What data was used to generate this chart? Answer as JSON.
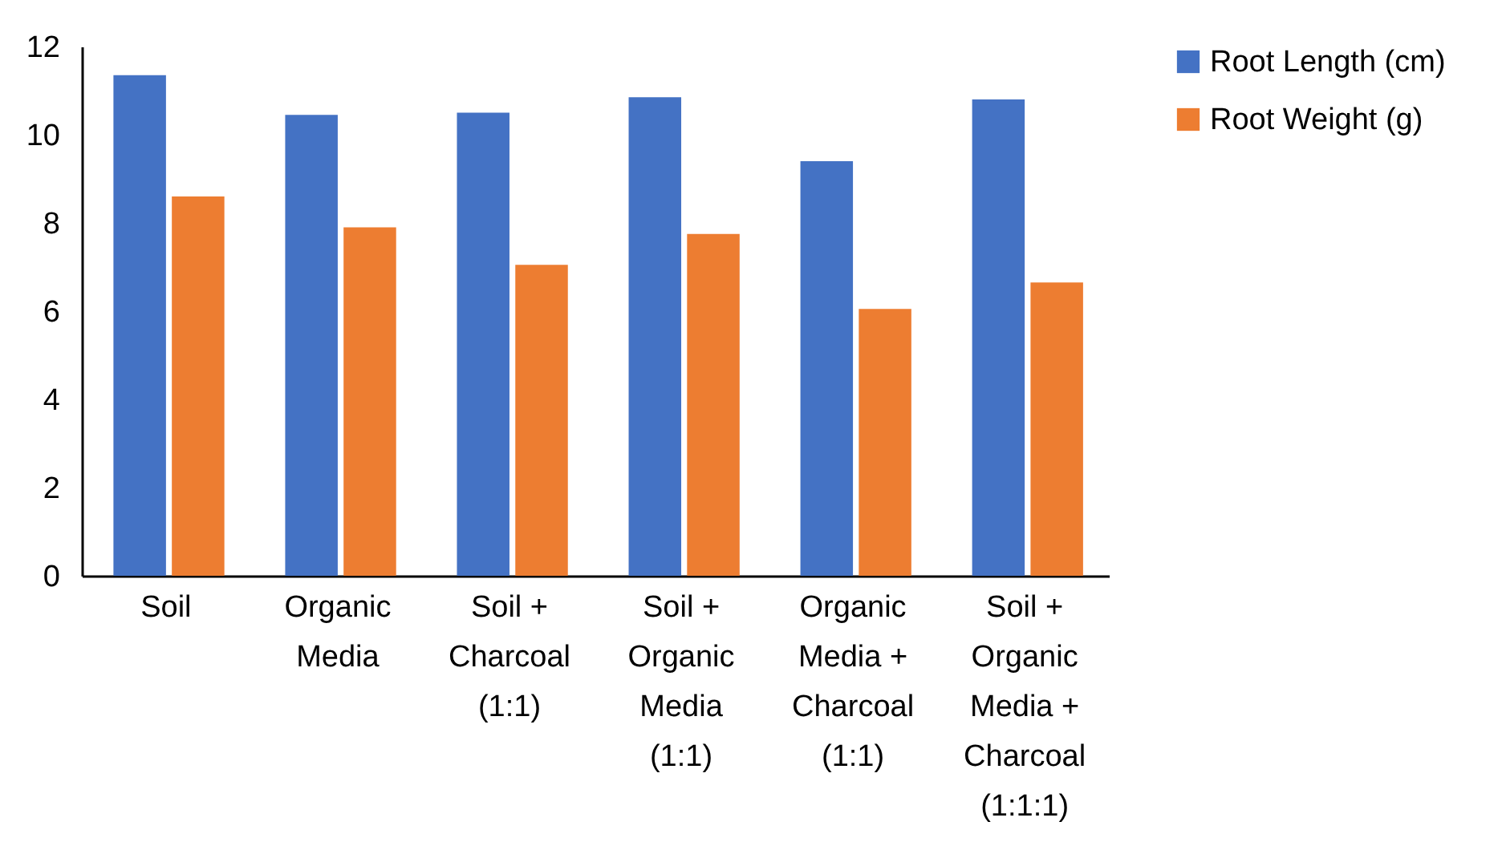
{
  "chart_data": {
    "type": "bar",
    "categories": [
      "Soil",
      "Organic Media",
      "Soil + Charcoal (1:1)",
      "Soil + Organic Media (1:1)",
      "Organic Media + Charcoal (1:1)",
      "Soil + Organic Media + Charcoal (1:1:1)"
    ],
    "series": [
      {
        "name": "Root Length (cm)",
        "color": "#4472c4",
        "values": [
          11.35,
          10.45,
          10.5,
          10.85,
          9.4,
          10.8
        ]
      },
      {
        "name": "Root Weight (g)",
        "color": "#ed7d31",
        "values": [
          8.6,
          7.9,
          7.05,
          7.75,
          6.05,
          6.65
        ]
      }
    ],
    "ylim": [
      0,
      12
    ],
    "yticks": [
      0,
      2,
      4,
      6,
      8,
      10,
      12
    ],
    "grid": false,
    "legend": "right"
  }
}
